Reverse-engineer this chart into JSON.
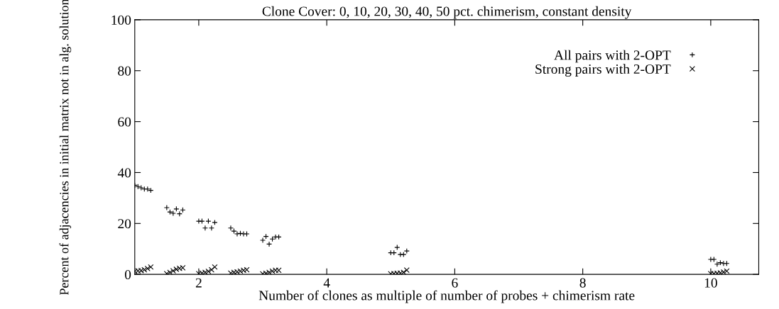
{
  "chart_data": {
    "type": "scatter",
    "title": "Clone Cover: 0, 10, 20, 30, 40, 50 pct. chimerism, constant density",
    "xlabel": "Number of clones as multiple of number of probes + chimerism rate",
    "ylabel": "Percent of adjacencies in initial matrix not in alg. solution",
    "xlim": [
      1,
      10.75
    ],
    "xticks": [
      2,
      4,
      6,
      8,
      10
    ],
    "ylim": [
      0,
      100
    ],
    "yticks": [
      0,
      20,
      40,
      60,
      80,
      100
    ],
    "grid": false,
    "legend": "top right",
    "series": [
      {
        "name": "All pairs with 2-OPT",
        "color": "#000000",
        "marker": "plus",
        "x": [
          1.0,
          1.05,
          1.1,
          1.15,
          1.2,
          1.25,
          1.5,
          1.55,
          1.6,
          1.65,
          1.7,
          1.75,
          2.0,
          2.05,
          2.1,
          2.15,
          2.2,
          2.25,
          2.5,
          2.55,
          2.6,
          2.65,
          2.7,
          2.75,
          3.0,
          3.05,
          3.1,
          3.15,
          3.2,
          3.25,
          5.0,
          5.05,
          5.1,
          5.15,
          5.2,
          5.25,
          10.0,
          10.05,
          10.1,
          10.15,
          10.2,
          10.25
        ],
        "values": [
          35,
          34.5,
          34,
          33.5,
          33.5,
          33,
          26.2,
          24.5,
          24.0,
          25.7,
          23.8,
          25.3,
          20.9,
          20.9,
          18.2,
          20.9,
          18.2,
          20.4,
          18.2,
          17.0,
          15.9,
          16.1,
          15.9,
          15.9,
          13.4,
          14.9,
          11.9,
          13.9,
          14.7,
          14.7,
          8.5,
          8.5,
          10.6,
          7.8,
          7.8,
          9.2,
          5.9,
          5.9,
          4.0,
          4.6,
          4.3,
          4.3
        ]
      },
      {
        "name": "Strong pairs with 2-OPT",
        "color": "#000000",
        "marker": "cross",
        "x": [
          1.0,
          1.05,
          1.1,
          1.15,
          1.2,
          1.25,
          1.5,
          1.55,
          1.6,
          1.65,
          1.7,
          1.75,
          2.0,
          2.05,
          2.1,
          2.15,
          2.2,
          2.25,
          2.5,
          2.55,
          2.6,
          2.65,
          2.7,
          2.75,
          3.0,
          3.05,
          3.1,
          3.15,
          3.2,
          3.25,
          5.0,
          5.05,
          5.1,
          5.15,
          5.2,
          5.25,
          10.0,
          10.05,
          10.1,
          10.15,
          10.2,
          10.25
        ],
        "values": [
          1.2,
          1.4,
          1.5,
          1.8,
          2.3,
          2.9,
          0.3,
          0.8,
          1.4,
          2.0,
          2.4,
          2.6,
          0.3,
          0.5,
          0.8,
          1.2,
          1.8,
          2.9,
          0.5,
          0.8,
          1.0,
          1.3,
          1.6,
          1.8,
          0.2,
          0.4,
          0.8,
          1.3,
          1.6,
          1.6,
          0.2,
          0.3,
          0.4,
          0.5,
          0.8,
          1.7,
          0.3,
          0.3,
          0.4,
          0.6,
          0.9,
          1.3
        ]
      }
    ]
  }
}
